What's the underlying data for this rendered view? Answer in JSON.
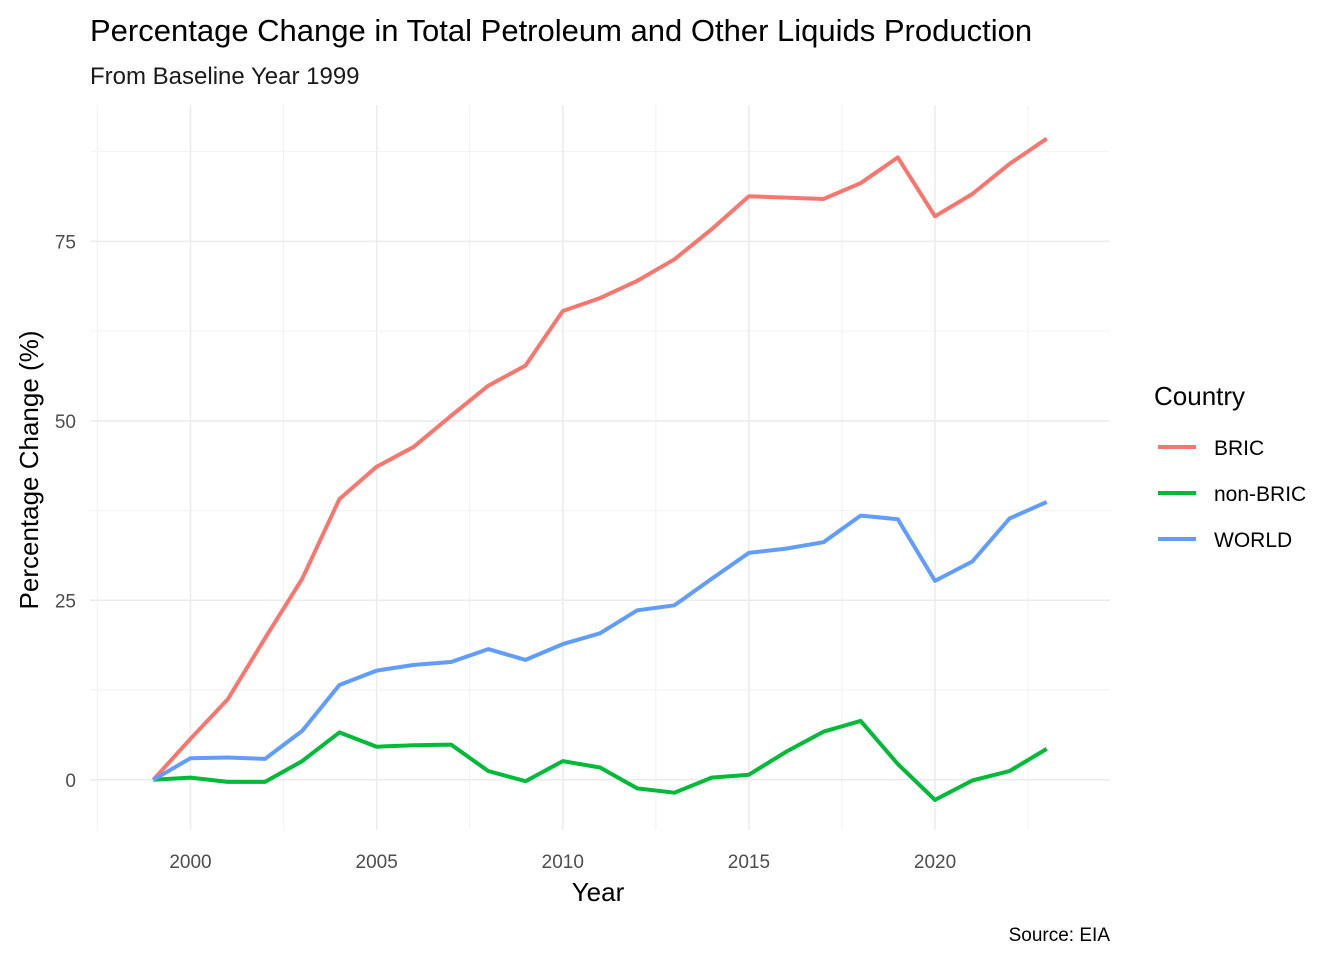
{
  "chart_data": {
    "type": "line",
    "title": "Percentage Change in Total Petroleum and Other Liquids Production",
    "subtitle": "From Baseline Year 1999",
    "xlabel": "Year",
    "ylabel": "Percentage Change (%)",
    "caption": "Source: EIA",
    "legend_title": "Country",
    "legend_position": "right",
    "grid": true,
    "xlim": [
      1997.3,
      2024.7
    ],
    "ylim": [
      -7,
      94
    ],
    "x_ticks": [
      2000,
      2005,
      2010,
      2015,
      2020
    ],
    "y_ticks": [
      0,
      25,
      50,
      75
    ],
    "x": [
      1999,
      2000,
      2001,
      2002,
      2003,
      2004,
      2005,
      2006,
      2007,
      2008,
      2009,
      2010,
      2011,
      2012,
      2013,
      2014,
      2015,
      2016,
      2017,
      2018,
      2019,
      2020,
      2021,
      2022,
      2023
    ],
    "series": [
      {
        "name": "BRIC",
        "color": "#F8766D",
        "values": [
          0,
          5.7,
          11.2,
          19.7,
          28.0,
          39.1,
          43.6,
          46.4,
          50.7,
          54.9,
          57.7,
          65.3,
          67.1,
          69.5,
          72.5,
          76.7,
          81.3,
          81.1,
          80.9,
          83.1,
          86.7,
          78.5,
          81.6,
          85.8,
          89.3
        ]
      },
      {
        "name": "non-BRIC",
        "color": "#00BA38",
        "values": [
          0,
          0.3,
          -0.3,
          -0.3,
          2.6,
          6.6,
          4.6,
          4.8,
          4.9,
          1.2,
          -0.2,
          2.6,
          1.7,
          -1.2,
          -1.8,
          0.3,
          0.7,
          3.9,
          6.7,
          8.2,
          2.2,
          -2.8,
          -0.1,
          1.2,
          4.3
        ]
      },
      {
        "name": "WORLD",
        "color": "#619CFF",
        "values": [
          0,
          3.0,
          3.1,
          2.9,
          6.8,
          13.2,
          15.2,
          16.0,
          16.4,
          18.2,
          16.7,
          18.9,
          20.4,
          23.6,
          24.3,
          28.0,
          31.6,
          32.2,
          33.1,
          36.8,
          36.3,
          27.7,
          30.4,
          36.4,
          38.7
        ]
      }
    ]
  }
}
